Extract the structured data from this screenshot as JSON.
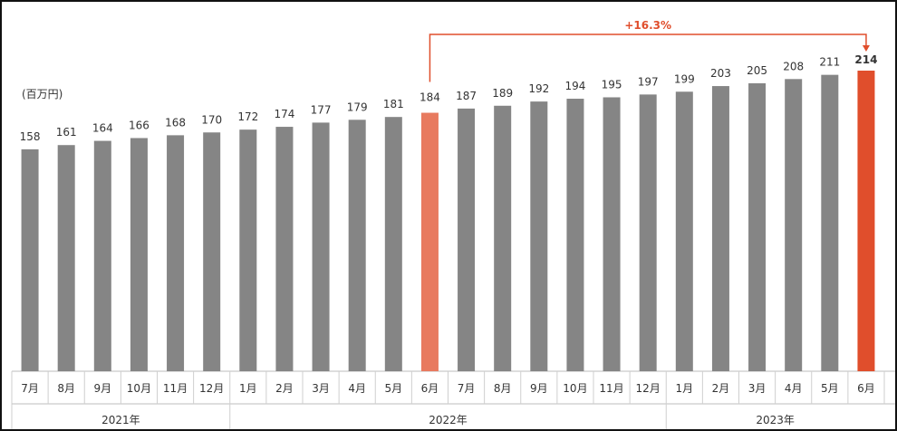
{
  "chart_data": {
    "type": "bar",
    "unit_label": "(百万円)",
    "categories": [
      "7月",
      "8月",
      "9月",
      "10月",
      "11月",
      "12月",
      "1月",
      "2月",
      "3月",
      "4月",
      "5月",
      "6月",
      "7月",
      "8月",
      "9月",
      "10月",
      "11月",
      "12月",
      "1月",
      "2月",
      "3月",
      "4月",
      "5月",
      "6月"
    ],
    "values": [
      158,
      161,
      164,
      166,
      168,
      170,
      172,
      174,
      177,
      179,
      181,
      184,
      187,
      189,
      192,
      194,
      195,
      197,
      199,
      203,
      205,
      208,
      211,
      214
    ],
    "value_labels": [
      "158",
      "161",
      "164",
      "166",
      "168",
      "170",
      "172",
      "174",
      "177",
      "179",
      "181",
      "184",
      "187",
      "189",
      "192",
      "194",
      "195",
      "197",
      "199",
      "203",
      "205",
      "208",
      "211",
      "214"
    ],
    "years": [
      {
        "label": "2021年",
        "start_index": 0,
        "end_index": 5
      },
      {
        "label": "2022年",
        "start_index": 6,
        "end_index": 17
      },
      {
        "label": "2023年",
        "start_index": 18,
        "end_index": 23
      }
    ],
    "highlights": [
      {
        "index": 11,
        "role": "baseline",
        "color": "#E87A5F"
      },
      {
        "index": 23,
        "role": "current",
        "color": "#E04E2C"
      }
    ],
    "growth_annotation": {
      "text": "+16.3%",
      "from_index": 11,
      "to_index": 23,
      "color": "#E04E2C"
    },
    "bar_color": "#858585",
    "ylim": [
      0,
      214
    ]
  }
}
